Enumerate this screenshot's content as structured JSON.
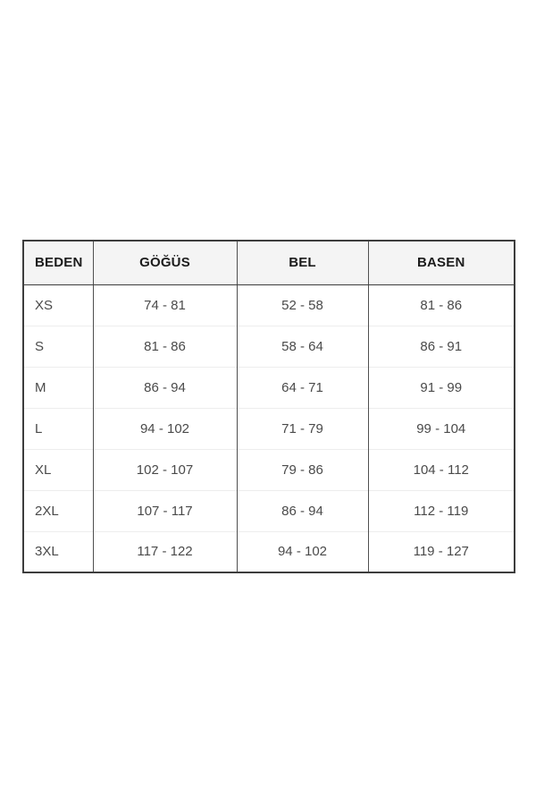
{
  "chart_data": {
    "type": "table",
    "title": "",
    "columns": [
      "BEDEN",
      "GÖĞÜS",
      "BEL",
      "BASEN"
    ],
    "rows": [
      [
        "XS",
        "74 - 81",
        "52 - 58",
        "81 - 86"
      ],
      [
        "S",
        "81 - 86",
        "58 - 64",
        "86 - 91"
      ],
      [
        "M",
        "86 - 94",
        "64 - 71",
        "91 - 99"
      ],
      [
        "L",
        "94 - 102",
        "71 - 79",
        "99 - 104"
      ],
      [
        "XL",
        "102 - 107",
        "79 - 86",
        "104 - 112"
      ],
      [
        "2XL",
        "107 - 117",
        "86 - 94",
        "112 - 119"
      ],
      [
        "3XL",
        "117 - 122",
        "94 - 102",
        "119 - 127"
      ]
    ]
  },
  "colors": {
    "page_background": "#ffffff",
    "header_background": "#f4f4f4",
    "outer_border": "#3d3d3d",
    "column_divider": "#4f4f4f",
    "row_divider": "#ededed",
    "header_text": "#1c1c1c",
    "body_text": "#4a4a4a"
  }
}
